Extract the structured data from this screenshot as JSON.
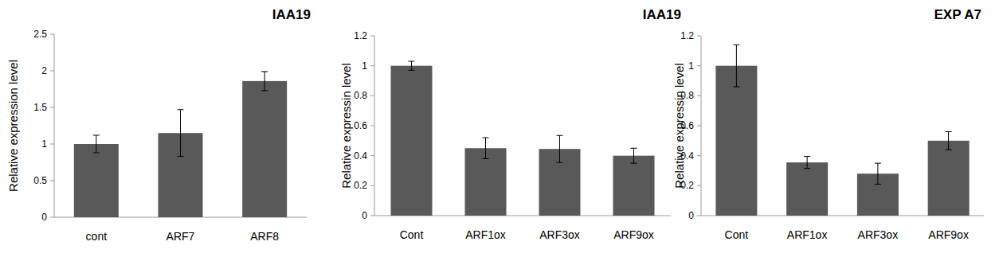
{
  "chart_data": [
    {
      "type": "bar",
      "title": "IAA19",
      "y_label": "Relative expression level",
      "categories": [
        "cont",
        "ARF7",
        "ARF8"
      ],
      "values": [
        1.0,
        1.15,
        1.86
      ],
      "errors": [
        0.12,
        0.32,
        0.13
      ],
      "color": "#595959",
      "ylim": [
        0,
        2.5
      ],
      "yticks": [
        0,
        0.5,
        1,
        1.5,
        2,
        2.5
      ],
      "grid": false
    },
    {
      "type": "bar",
      "title": "IAA19",
      "y_label": "Relative expressin level",
      "categories": [
        "Cont",
        "ARF1ox",
        "ARF3ox",
        "ARF9ox"
      ],
      "values": [
        1.0,
        0.45,
        0.445,
        0.4
      ],
      "errors": [
        0.03,
        0.07,
        0.09,
        0.05
      ],
      "color": "#595959",
      "ylim": [
        0,
        1.2
      ],
      "yticks": [
        0,
        0.2,
        0.4,
        0.6,
        0.8,
        1,
        1.2
      ],
      "grid": false
    },
    {
      "type": "bar",
      "title": "EXP A7",
      "y_label": "Relative expressin level",
      "categories": [
        "Cont",
        "ARF1ox",
        "ARF3ox",
        "ARF9ox"
      ],
      "values": [
        1.0,
        0.355,
        0.28,
        0.5
      ],
      "errors": [
        0.14,
        0.04,
        0.07,
        0.06
      ],
      "color": "#595959",
      "ylim": [
        0,
        1.2
      ],
      "yticks": [
        0,
        0.2,
        0.4,
        0.6,
        0.8,
        1,
        1.2
      ],
      "grid": false
    }
  ]
}
